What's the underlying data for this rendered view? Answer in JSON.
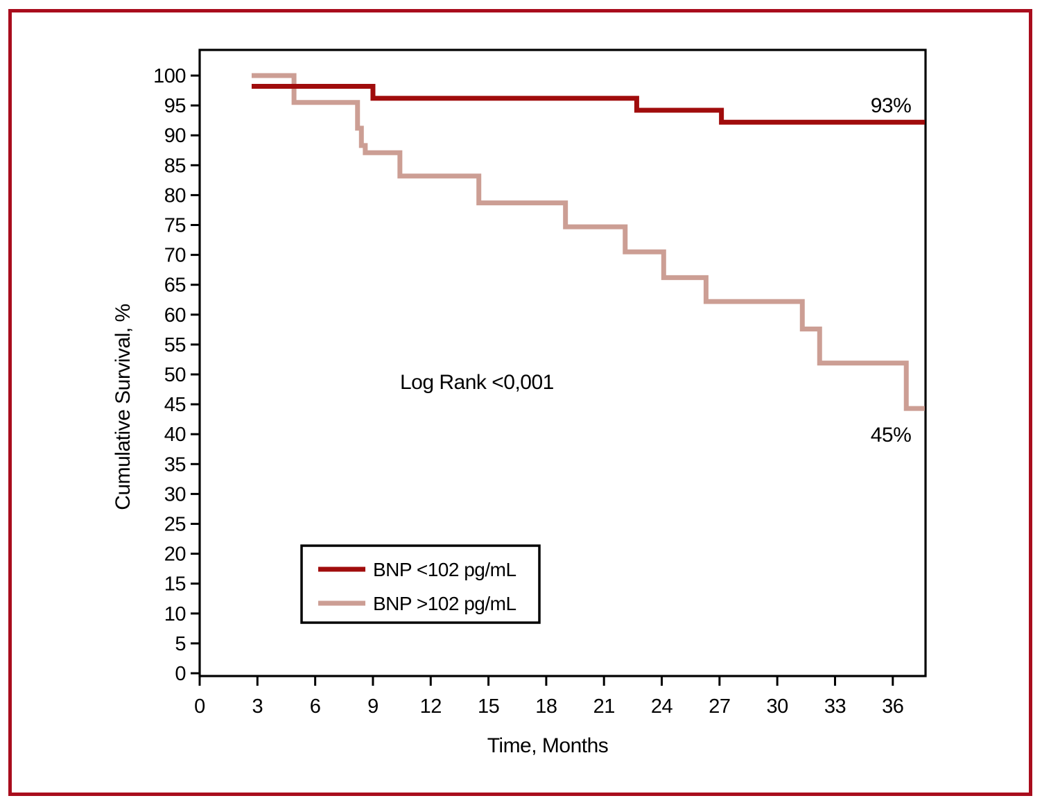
{
  "figure": {
    "border_color": "#A90D1D",
    "background_color": "#FFFFFF",
    "axis_color": "#000000"
  },
  "chart_data": {
    "type": "line",
    "subtype": "kaplan-meier-step-survival",
    "title": "",
    "xlabel": "Time, Months",
    "ylabel": "Cumulative Survival, %",
    "xlim": [
      0,
      37.7
    ],
    "ylim": [
      0,
      100
    ],
    "xticks": [
      0,
      3,
      6,
      9,
      12,
      15,
      18,
      21,
      24,
      27,
      30,
      33,
      36
    ],
    "yticks": [
      0,
      5,
      10,
      15,
      20,
      25,
      30,
      35,
      40,
      45,
      50,
      55,
      60,
      65,
      70,
      75,
      80,
      85,
      90,
      95,
      100
    ],
    "grid": false,
    "legend_position": "lower-left-inside",
    "annotations": [
      {
        "id": "log-rank",
        "text": "Log Rank <0,001",
        "x": 14.4,
        "y": 48.7
      },
      {
        "id": "label-93",
        "text": "93%",
        "x": 35.9,
        "y": 95.0
      },
      {
        "id": "label-45",
        "text": "45%",
        "x": 35.9,
        "y": 39.9
      }
    ],
    "series": [
      {
        "key": "bnp-lt-102",
        "name": "BNP <102 pg/mL",
        "color": "#A00C0C",
        "end_label": "93%",
        "t_end": 37.66,
        "steps": [
          [
            2.7,
            98.2
          ],
          [
            9.0,
            96.2
          ],
          [
            22.7,
            94.2
          ],
          [
            27.1,
            92.2
          ]
        ]
      },
      {
        "key": "bnp-gt-102",
        "name": "BNP >102 pg/mL",
        "color": "#CC9E94",
        "end_label": "45%",
        "t_end": 37.66,
        "steps": [
          [
            2.7,
            100
          ],
          [
            4.9,
            95.5
          ],
          [
            8.2,
            91.2
          ],
          [
            8.4,
            88.3
          ],
          [
            8.6,
            87.1
          ],
          [
            10.4,
            83.2
          ],
          [
            14.5,
            78.7
          ],
          [
            19.0,
            74.7
          ],
          [
            22.1,
            70.5
          ],
          [
            24.1,
            66.2
          ],
          [
            26.3,
            62.2
          ],
          [
            31.3,
            57.6
          ],
          [
            32.2,
            51.9
          ],
          [
            36.7,
            44.3
          ]
        ]
      }
    ]
  }
}
